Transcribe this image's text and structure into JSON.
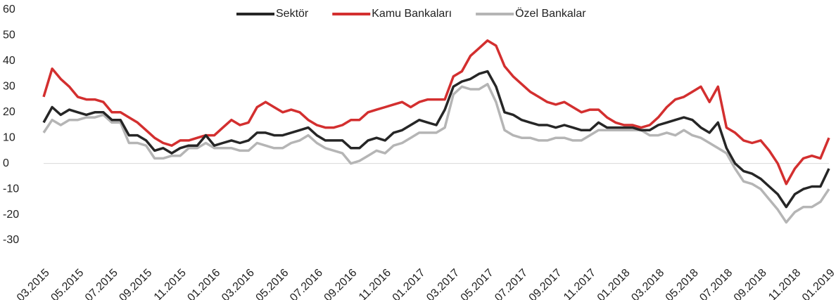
{
  "chart_data": {
    "type": "line",
    "categories": [
      "03.2015",
      null,
      null,
      null,
      "05.2015",
      null,
      null,
      null,
      "07.2015",
      null,
      null,
      null,
      "09.2015",
      null,
      null,
      null,
      "11.2015",
      null,
      null,
      null,
      "01.2016",
      null,
      null,
      null,
      "03.2016",
      null,
      null,
      null,
      "05.2016",
      null,
      null,
      null,
      "07.2016",
      null,
      null,
      null,
      "09.2016",
      null,
      null,
      null,
      "11.2016",
      null,
      null,
      null,
      "01.2017",
      null,
      null,
      null,
      "03.2017",
      null,
      null,
      null,
      "05.2017",
      null,
      null,
      null,
      "07.2017",
      null,
      null,
      null,
      "09.2017",
      null,
      null,
      null,
      "11.2017",
      null,
      null,
      null,
      "01.2018",
      null,
      null,
      null,
      "03.2018",
      null,
      null,
      null,
      "05.2018",
      null,
      null,
      null,
      "07.2018",
      null,
      null,
      null,
      "09.2018",
      null,
      null,
      null,
      "11.2018",
      null,
      null,
      null,
      "01.2019"
    ],
    "series": [
      {
        "name": "Sektör",
        "color": "#262626",
        "values": [
          16,
          22,
          19,
          21,
          20,
          19,
          20,
          20,
          17,
          17,
          11,
          11,
          9,
          5,
          6,
          4,
          6,
          7,
          7,
          11,
          7,
          8,
          9,
          8,
          9,
          12,
          12,
          11,
          11,
          12,
          13,
          14,
          11,
          9,
          9,
          9,
          6,
          6,
          9,
          10,
          9,
          12,
          13,
          15,
          17,
          16,
          15,
          21,
          30,
          32,
          33,
          35,
          36,
          30,
          20,
          19,
          17,
          16,
          15,
          15,
          14,
          15,
          14,
          13,
          13,
          16,
          14,
          14,
          14,
          14,
          13,
          13,
          15,
          16,
          17,
          18,
          17,
          14,
          12,
          16,
          6,
          0,
          -3,
          -4,
          -6,
          -9,
          -12,
          -17,
          -12,
          -10,
          -9,
          -9,
          -2
        ]
      },
      {
        "name": "Kamu Bankaları",
        "color": "#d32f2f",
        "values": [
          26,
          37,
          33,
          30,
          26,
          25,
          25,
          24,
          20,
          20,
          18,
          16,
          13,
          10,
          8,
          7,
          9,
          9,
          10,
          11,
          11,
          14,
          17,
          15,
          16,
          22,
          24,
          22,
          20,
          21,
          20,
          17,
          15,
          14,
          14,
          15,
          17,
          17,
          20,
          21,
          22,
          23,
          24,
          22,
          24,
          25,
          25,
          25,
          34,
          36,
          42,
          45,
          48,
          46,
          38,
          34,
          31,
          28,
          26,
          24,
          23,
          24,
          22,
          20,
          21,
          21,
          18,
          16,
          15,
          15,
          14,
          15,
          18,
          22,
          25,
          26,
          28,
          30,
          24,
          30,
          14,
          12,
          9,
          8,
          9,
          5,
          0,
          -8,
          -2,
          2,
          3,
          2,
          10
        ]
      },
      {
        "name": "Özel Bankalar",
        "color": "#b5b5b5",
        "values": [
          12,
          17,
          15,
          17,
          17,
          18,
          18,
          19,
          16,
          16,
          8,
          8,
          7,
          2,
          2,
          3,
          3,
          6,
          6,
          8,
          6,
          6,
          6,
          5,
          5,
          8,
          7,
          6,
          6,
          8,
          9,
          11,
          8,
          6,
          5,
          4,
          0,
          1,
          3,
          5,
          4,
          7,
          8,
          10,
          12,
          12,
          12,
          14,
          27,
          30,
          29,
          29,
          31,
          24,
          13,
          11,
          10,
          10,
          9,
          9,
          10,
          10,
          9,
          9,
          11,
          13,
          13,
          13,
          13,
          13,
          13,
          11,
          11,
          12,
          11,
          13,
          11,
          10,
          8,
          6,
          4,
          -2,
          -7,
          -8,
          -10,
          -14,
          -18,
          -23,
          -19,
          -17,
          -17,
          -15,
          -10
        ]
      }
    ],
    "ylim": [
      -30,
      60
    ],
    "yticks": [
      -30,
      -20,
      -10,
      0,
      10,
      20,
      30,
      40,
      50,
      60
    ],
    "legend": "top"
  }
}
